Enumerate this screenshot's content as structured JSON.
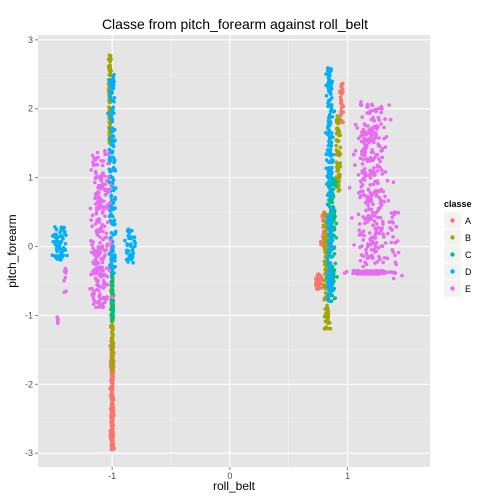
{
  "chart_data": {
    "type": "scatter",
    "title": "Classe from pitch_forearm against roll_belt",
    "xlabel": "roll_belt",
    "ylabel": "pitch_forearm",
    "xlim": [
      -1.63,
      1.7
    ],
    "ylim": [
      -3.2,
      3.07
    ],
    "x_ticks": [
      -1,
      0,
      1
    ],
    "x_tick_labels": [
      "-1",
      "0",
      "1"
    ],
    "y_ticks": [
      -3,
      -2,
      -1,
      0,
      1,
      2,
      3
    ],
    "y_tick_labels": [
      "-3",
      "-2",
      "-1",
      "0",
      "1",
      "2",
      "3"
    ],
    "grid": true,
    "legend": {
      "title": "classe",
      "placement": "right"
    },
    "series": [
      {
        "name": "A",
        "color": "#F8766D",
        "clusters": [
          {
            "x_center": -1.0,
            "x_spread": 0.02,
            "y_range": [
              -2.95,
              -1.4
            ],
            "count": 240
          },
          {
            "x_center": -1.0,
            "x_spread": 0.015,
            "y_range": [
              -1.4,
              0.2
            ],
            "count": 40
          },
          {
            "x_center": 0.95,
            "x_spread": 0.02,
            "y_range": [
              1.8,
              2.4
            ],
            "count": 40
          },
          {
            "x_center": 0.75,
            "x_spread": 0.04,
            "y_range": [
              -0.62,
              -0.4
            ],
            "count": 50
          },
          {
            "x_center": 0.8,
            "x_spread": 0.04,
            "y_range": [
              0.0,
              0.5
            ],
            "count": 30
          }
        ]
      },
      {
        "name": "B",
        "color": "#A3A500",
        "clusters": [
          {
            "x_center": -1.02,
            "x_spread": 0.015,
            "y_range": [
              1.5,
              2.78
            ],
            "count": 120
          },
          {
            "x_center": -1.0,
            "x_spread": 0.015,
            "y_range": [
              -1.8,
              -0.6
            ],
            "count": 90
          },
          {
            "x_center": 0.82,
            "x_spread": 0.04,
            "y_range": [
              -1.2,
              0.5
            ],
            "count": 120
          },
          {
            "x_center": 0.92,
            "x_spread": 0.03,
            "y_range": [
              0.8,
              1.9
            ],
            "count": 70
          }
        ]
      },
      {
        "name": "C",
        "color": "#00BF7D",
        "clusters": [
          {
            "x_center": -1.0,
            "x_spread": 0.015,
            "y_range": [
              -1.1,
              -0.3
            ],
            "count": 60
          },
          {
            "x_center": 0.87,
            "x_spread": 0.05,
            "y_range": [
              -0.8,
              1.0
            ],
            "count": 120
          }
        ]
      },
      {
        "name": "D",
        "color": "#00B0F6",
        "clusters": [
          {
            "x_center": -1.45,
            "x_spread": 0.08,
            "y_range": [
              -0.2,
              0.3
            ],
            "count": 70
          },
          {
            "x_center": -1.0,
            "x_spread": 0.05,
            "y_range": [
              -0.4,
              2.5
            ],
            "count": 160
          },
          {
            "x_center": -0.85,
            "x_spread": 0.07,
            "y_range": [
              -0.25,
              0.25
            ],
            "count": 40
          },
          {
            "x_center": 0.85,
            "x_spread": 0.04,
            "y_range": [
              -0.8,
              2.6
            ],
            "count": 240
          }
        ]
      },
      {
        "name": "E",
        "color": "#E76BF3",
        "clusters": [
          {
            "x_center": -1.1,
            "x_spread": 0.12,
            "y_range": [
              -0.9,
              1.4
            ],
            "count": 240
          },
          {
            "x_center": -1.47,
            "x_spread": 0.02,
            "y_range": [
              -1.12,
              -1.02
            ],
            "count": 6
          },
          {
            "x_center": -1.4,
            "x_spread": 0.03,
            "y_range": [
              -0.7,
              -0.3
            ],
            "count": 8
          },
          {
            "x_center": 1.2,
            "x_spread": 0.2,
            "y_range": [
              -0.3,
              2.1
            ],
            "count": 320
          },
          {
            "x_center": 1.2,
            "x_spread": 0.25,
            "y_range": [
              -0.4,
              -0.35
            ],
            "count": 120
          },
          {
            "x_center": 1.4,
            "x_spread": 0.08,
            "y_range": [
              -0.6,
              0.5
            ],
            "count": 30
          }
        ]
      }
    ]
  }
}
